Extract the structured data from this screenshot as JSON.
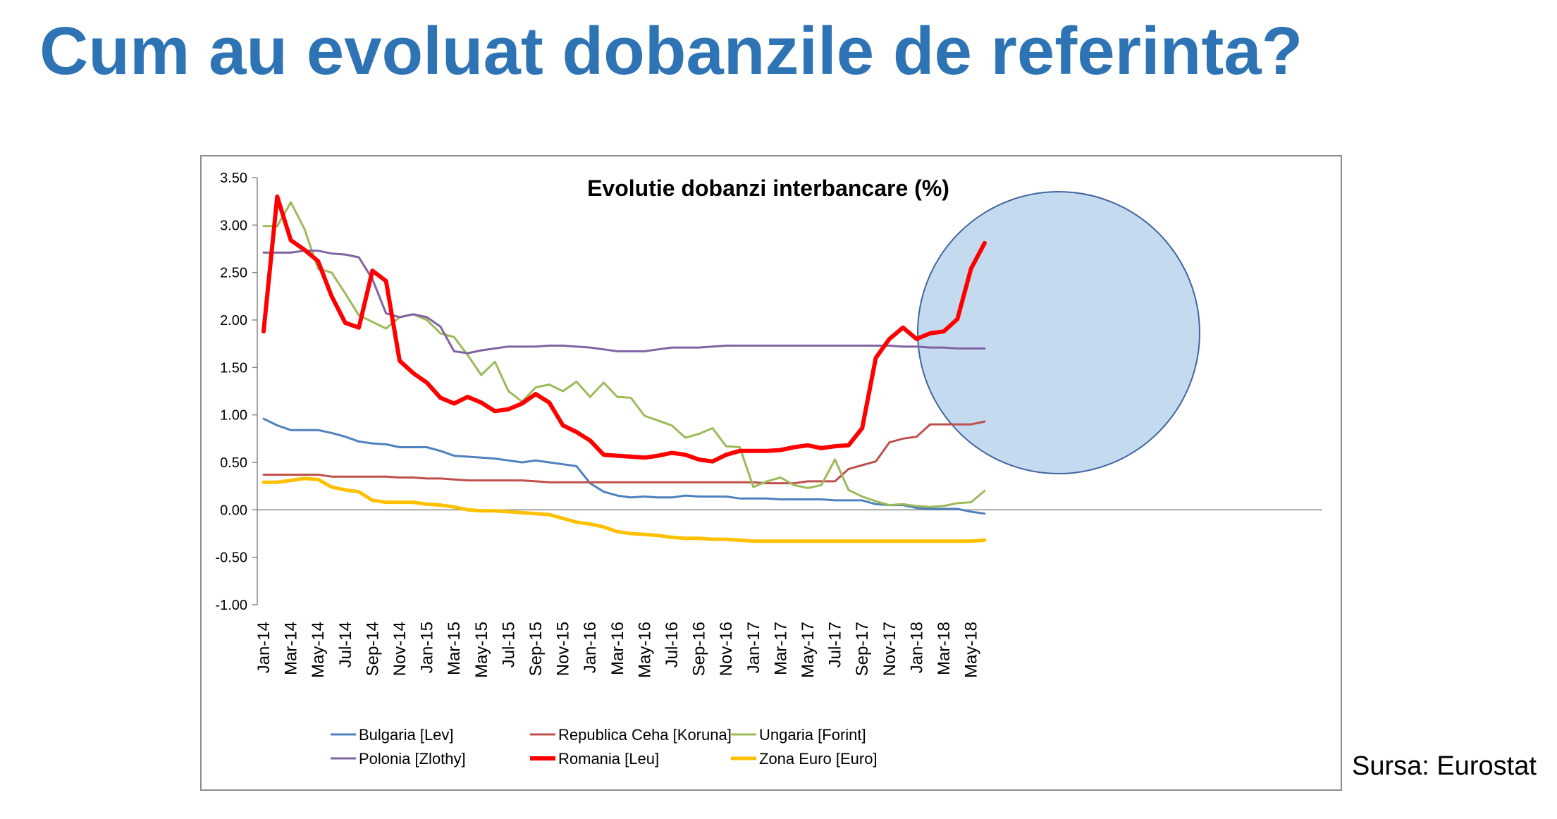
{
  "slide": {
    "title": "Cum au evoluat dobanzile de referinta?",
    "source": "Sursa: Eurostat"
  },
  "colors": {
    "title": "#2E74B5",
    "highlight_fill": "#BDD7EE",
    "highlight_stroke": "#2F5597"
  },
  "chart_data": {
    "type": "line",
    "title": "Evolutie dobanzi interbancare (%)",
    "xlabel": "",
    "ylabel": "",
    "ylim": [
      -1.0,
      3.5
    ],
    "yticks": [
      3.5,
      3.0,
      2.5,
      2.0,
      1.5,
      1.0,
      0.5,
      0.0,
      -0.5,
      -1.0
    ],
    "ytick_labels": [
      "3.50",
      "3.00",
      "2.50",
      "2.00",
      "1.50",
      "1.00",
      "0.50",
      "0.00",
      "-0.50",
      "-1.00"
    ],
    "x": [
      "Jan-14",
      "Feb-14",
      "Mar-14",
      "Apr-14",
      "May-14",
      "Jun-14",
      "Jul-14",
      "Aug-14",
      "Sep-14",
      "Oct-14",
      "Nov-14",
      "Dec-14",
      "Jan-15",
      "Feb-15",
      "Mar-15",
      "Apr-15",
      "May-15",
      "Jun-15",
      "Jul-15",
      "Aug-15",
      "Sep-15",
      "Oct-15",
      "Nov-15",
      "Dec-15",
      "Jan-16",
      "Feb-16",
      "Mar-16",
      "Apr-16",
      "May-16",
      "Jun-16",
      "Jul-16",
      "Aug-16",
      "Sep-16",
      "Oct-16",
      "Nov-16",
      "Dec-16",
      "Jan-17",
      "Feb-17",
      "Mar-17",
      "Apr-17",
      "May-17",
      "Jun-17",
      "Jul-17",
      "Aug-17",
      "Sep-17",
      "Oct-17",
      "Nov-17",
      "Dec-17",
      "Jan-18",
      "Feb-18",
      "Mar-18",
      "Apr-18",
      "May-18",
      "Jun-18"
    ],
    "xtick_labels": [
      "Jan-14",
      "Mar-14",
      "May-14",
      "Jul-14",
      "Sep-14",
      "Nov-14",
      "Jan-15",
      "Mar-15",
      "May-15",
      "Jul-15",
      "Sep-15",
      "Nov-15",
      "Jan-16",
      "Mar-16",
      "May-16",
      "Jul-16",
      "Sep-16",
      "Nov-16",
      "Jan-17",
      "Mar-17",
      "May-17",
      "Jul-17",
      "Sep-17",
      "Nov-17",
      "Jan-18",
      "Mar-18",
      "May-18"
    ],
    "legend_position": "bottom",
    "series": [
      {
        "name": "Bulgaria [Lev]",
        "color": "#4F81BD",
        "width": 3,
        "values": [
          0.96,
          0.89,
          0.84,
          0.84,
          0.84,
          0.81,
          0.77,
          0.72,
          0.7,
          0.69,
          0.66,
          0.66,
          0.66,
          0.62,
          0.57,
          0.56,
          0.55,
          0.54,
          0.52,
          0.5,
          0.52,
          0.5,
          0.48,
          0.46,
          0.28,
          0.19,
          0.15,
          0.13,
          0.14,
          0.13,
          0.13,
          0.15,
          0.14,
          0.14,
          0.14,
          0.12,
          0.12,
          0.12,
          0.11,
          0.11,
          0.11,
          0.11,
          0.1,
          0.1,
          0.1,
          0.06,
          0.05,
          0.05,
          0.02,
          0.01,
          0.01,
          0.01,
          -0.02,
          -0.04
        ]
      },
      {
        "name": "Republica Ceha [Koruna]",
        "color": "#C0504D",
        "width": 3,
        "values": [
          0.37,
          0.37,
          0.37,
          0.37,
          0.37,
          0.35,
          0.35,
          0.35,
          0.35,
          0.35,
          0.34,
          0.34,
          0.33,
          0.33,
          0.32,
          0.31,
          0.31,
          0.31,
          0.31,
          0.31,
          0.3,
          0.29,
          0.29,
          0.29,
          0.29,
          0.29,
          0.29,
          0.29,
          0.29,
          0.29,
          0.29,
          0.29,
          0.29,
          0.29,
          0.29,
          0.29,
          0.29,
          0.28,
          0.28,
          0.28,
          0.3,
          0.3,
          0.3,
          0.43,
          0.47,
          0.51,
          0.71,
          0.75,
          0.77,
          0.9,
          0.9,
          0.9,
          0.9,
          0.93
        ]
      },
      {
        "name": "Ungaria [Forint]",
        "color": "#9BBB59",
        "width": 3,
        "values": [
          2.99,
          2.99,
          3.24,
          2.96,
          2.54,
          2.5,
          2.28,
          2.05,
          1.98,
          1.91,
          2.03,
          2.06,
          2.0,
          1.86,
          1.82,
          1.63,
          1.42,
          1.56,
          1.25,
          1.14,
          1.29,
          1.32,
          1.25,
          1.35,
          1.19,
          1.34,
          1.19,
          1.18,
          0.99,
          0.94,
          0.89,
          0.76,
          0.8,
          0.86,
          0.67,
          0.66,
          0.24,
          0.3,
          0.34,
          0.26,
          0.23,
          0.26,
          0.53,
          0.21,
          0.14,
          0.09,
          0.05,
          0.06,
          0.04,
          0.03,
          0.04,
          0.07,
          0.08,
          0.2
        ]
      },
      {
        "name": "Polonia [Zlothy]",
        "color": "#8064A2",
        "width": 3,
        "values": [
          2.71,
          2.71,
          2.71,
          2.73,
          2.73,
          2.7,
          2.69,
          2.66,
          2.43,
          2.07,
          2.03,
          2.06,
          2.03,
          1.93,
          1.67,
          1.65,
          1.68,
          1.7,
          1.72,
          1.72,
          1.72,
          1.73,
          1.73,
          1.72,
          1.71,
          1.69,
          1.67,
          1.67,
          1.67,
          1.69,
          1.71,
          1.71,
          1.71,
          1.72,
          1.73,
          1.73,
          1.73,
          1.73,
          1.73,
          1.73,
          1.73,
          1.73,
          1.73,
          1.73,
          1.73,
          1.73,
          1.73,
          1.72,
          1.72,
          1.71,
          1.71,
          1.7,
          1.7,
          1.7
        ]
      },
      {
        "name": "Romania [Leu]",
        "color": "#FF0000",
        "width": 6,
        "values": [
          1.88,
          3.3,
          2.84,
          2.74,
          2.62,
          2.25,
          1.97,
          1.92,
          2.52,
          2.41,
          1.57,
          1.44,
          1.34,
          1.18,
          1.12,
          1.19,
          1.13,
          1.04,
          1.06,
          1.12,
          1.22,
          1.13,
          0.89,
          0.82,
          0.73,
          0.58,
          0.57,
          0.56,
          0.55,
          0.57,
          0.6,
          0.58,
          0.53,
          0.51,
          0.58,
          0.62,
          0.62,
          0.62,
          0.63,
          0.66,
          0.68,
          0.65,
          0.67,
          0.68,
          0.86,
          1.6,
          1.8,
          1.92,
          1.8,
          1.86,
          1.88,
          2.01,
          2.54,
          2.81
        ]
      },
      {
        "name": "Zona Euro [Euro]",
        "color": "#FFC000",
        "width": 5,
        "values": [
          0.29,
          0.29,
          0.31,
          0.33,
          0.32,
          0.24,
          0.21,
          0.19,
          0.1,
          0.08,
          0.08,
          0.08,
          0.06,
          0.05,
          0.03,
          0.0,
          -0.01,
          -0.01,
          -0.02,
          -0.03,
          -0.04,
          -0.05,
          -0.09,
          -0.13,
          -0.15,
          -0.18,
          -0.23,
          -0.25,
          -0.26,
          -0.27,
          -0.29,
          -0.3,
          -0.3,
          -0.31,
          -0.31,
          -0.32,
          -0.33,
          -0.33,
          -0.33,
          -0.33,
          -0.33,
          -0.33,
          -0.33,
          -0.33,
          -0.33,
          -0.33,
          -0.33,
          -0.33,
          -0.33,
          -0.33,
          -0.33,
          -0.33,
          -0.33,
          -0.32
        ]
      }
    ],
    "annotations": [
      {
        "type": "highlight-circle",
        "from": "Sep-17",
        "to": "Jun-18",
        "description": "highlighted region"
      }
    ]
  }
}
